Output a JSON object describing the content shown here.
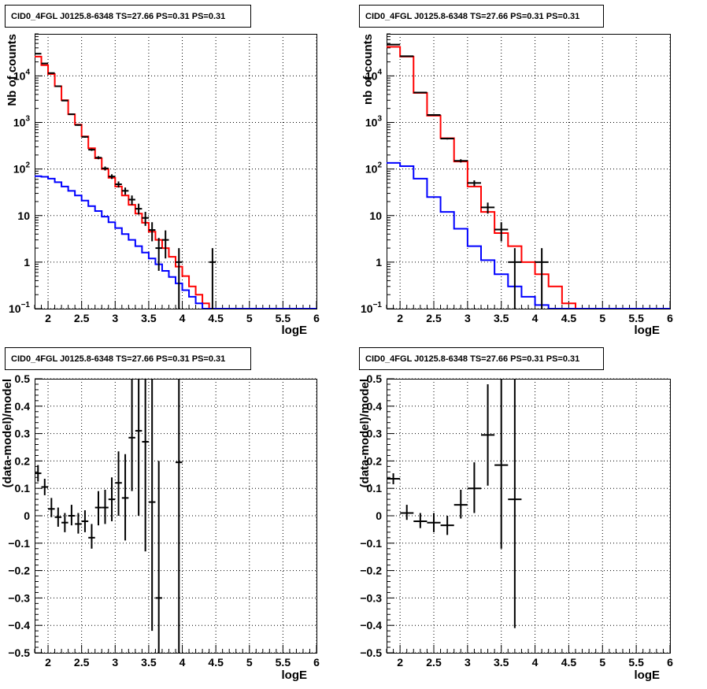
{
  "chart_data": [
    {
      "id": "tl",
      "type": "histogram-log",
      "title": "CID0_4FGL J0125.8-6348 TS=27.66 PS=0.31 PS=0.31",
      "xlabel": "logE",
      "ylabel": "Nb of counts",
      "xlim": [
        1.8,
        6.0
      ],
      "ylim": [
        0.1,
        80000
      ],
      "log_y": true,
      "grid": true,
      "x_ticks": [
        "2",
        "2.5",
        "3",
        "3.5",
        "4",
        "4.5",
        "5",
        "5.5",
        "6"
      ],
      "y_ticks": [
        {
          "v": 0.1,
          "base": "10",
          "exp": "−1"
        },
        {
          "v": 1,
          "label": "1"
        },
        {
          "v": 10,
          "label": "10"
        },
        {
          "v": 100,
          "base": "10",
          "exp": "2"
        },
        {
          "v": 1000,
          "base": "10",
          "exp": "3"
        },
        {
          "v": 10000,
          "base": "10",
          "exp": "4"
        }
      ],
      "bin_edges": [
        1.8,
        1.9,
        2.0,
        2.1,
        2.2,
        2.3,
        2.4,
        2.5,
        2.6,
        2.7,
        2.8,
        2.9,
        3.0,
        3.1,
        3.2,
        3.3,
        3.4,
        3.5,
        3.6,
        3.7,
        3.8,
        3.9,
        4.0,
        4.1,
        4.2,
        4.3,
        4.4,
        4.5,
        4.6,
        4.7,
        4.8,
        4.9,
        5.0,
        5.1,
        5.2,
        5.3,
        5.4,
        5.5,
        5.6,
        5.7,
        5.8,
        5.9,
        6.0
      ],
      "series": [
        {
          "color": "#ff0000",
          "style": "step",
          "values": [
            26000,
            17000,
            11000,
            6000,
            3000,
            1500,
            900,
            500,
            280,
            170,
            100,
            65,
            42,
            27,
            17,
            11,
            7,
            4.5,
            3.0,
            2.0,
            1.3,
            0.8,
            0.5,
            0.3,
            0.2,
            0.13,
            0.1,
            0.1,
            0.1,
            0.1,
            0.1,
            0.1,
            0.1,
            0.1,
            0.1,
            0.1,
            0.1,
            0.1,
            0.1,
            0.1,
            0.1,
            0.1
          ]
        },
        {
          "color": "#0000ff",
          "style": "step",
          "values": [
            70,
            68,
            62,
            52,
            42,
            34,
            27,
            21,
            16,
            12.5,
            9.5,
            7.2,
            5.4,
            4.0,
            3.0,
            2.2,
            1.6,
            1.2,
            0.9,
            0.65,
            0.48,
            0.35,
            0.25,
            0.18,
            0.13,
            0.1,
            0.1,
            0.1,
            0.1,
            0.1,
            0.1,
            0.1,
            0.1,
            0.1,
            0.1,
            0.1,
            0.1,
            0.1,
            0.1,
            0.1,
            0.1,
            0.1
          ]
        },
        {
          "color": "#000000",
          "style": "points",
          "points": [
            {
              "x": 1.85,
              "y": 30000,
              "ylo": 29700,
              "yhi": 30300,
              "xerr": 0.05
            },
            {
              "x": 1.95,
              "y": 18500,
              "ylo": 18300,
              "yhi": 18700,
              "xerr": 0.05
            },
            {
              "x": 2.05,
              "y": 11500,
              "ylo": 11400,
              "yhi": 11600,
              "xerr": 0.05
            },
            {
              "x": 2.15,
              "y": 6000,
              "ylo": 5920,
              "yhi": 6080,
              "xerr": 0.05
            },
            {
              "x": 2.25,
              "y": 2950,
              "ylo": 2900,
              "yhi": 3000,
              "xerr": 0.05
            },
            {
              "x": 2.35,
              "y": 1500,
              "ylo": 1460,
              "yhi": 1540,
              "xerr": 0.05
            },
            {
              "x": 2.45,
              "y": 880,
              "ylo": 850,
              "yhi": 910,
              "xerr": 0.05
            },
            {
              "x": 2.55,
              "y": 490,
              "ylo": 470,
              "yhi": 510,
              "xerr": 0.05
            },
            {
              "x": 2.65,
              "y": 260,
              "ylo": 245,
              "yhi": 275,
              "xerr": 0.05
            },
            {
              "x": 2.75,
              "y": 175,
              "ylo": 162,
              "yhi": 188,
              "xerr": 0.05
            },
            {
              "x": 2.85,
              "y": 103,
              "ylo": 93,
              "yhi": 113,
              "xerr": 0.05
            },
            {
              "x": 2.95,
              "y": 69,
              "ylo": 61,
              "yhi": 77,
              "xerr": 0.05
            },
            {
              "x": 3.05,
              "y": 47,
              "ylo": 40,
              "yhi": 54,
              "xerr": 0.05
            },
            {
              "x": 3.15,
              "y": 34,
              "ylo": 28,
              "yhi": 40,
              "xerr": 0.05
            },
            {
              "x": 3.25,
              "y": 22,
              "ylo": 17,
              "yhi": 27,
              "xerr": 0.05
            },
            {
              "x": 3.35,
              "y": 14,
              "ylo": 10.5,
              "yhi": 18,
              "xerr": 0.05
            },
            {
              "x": 3.45,
              "y": 8.9,
              "ylo": 6,
              "yhi": 12,
              "xerr": 0.05
            },
            {
              "x": 3.55,
              "y": 4.9,
              "ylo": 2.8,
              "yhi": 7.2,
              "xerr": 0.05
            },
            {
              "x": 3.65,
              "y": 2.0,
              "ylo": 0.65,
              "yhi": 3.3,
              "xerr": 0.05
            },
            {
              "x": 3.75,
              "y": 3.0,
              "ylo": 1.2,
              "yhi": 4.8,
              "xerr": 0.05
            },
            {
              "x": 3.95,
              "y": 1.0,
              "ylo": 0.1,
              "yhi": 2.0,
              "xerr": 0.05
            },
            {
              "x": 4.45,
              "y": 1.0,
              "ylo": 0.1,
              "yhi": 2.0,
              "xerr": 0.05
            }
          ]
        }
      ]
    },
    {
      "id": "tr",
      "type": "histogram-log",
      "title": "CID0_4FGL J0125.8-6348 TS=27.66 PS=0.31 PS=0.31",
      "xlabel": "logE",
      "ylabel": "nb of counts",
      "xlim": [
        1.8,
        6.0
      ],
      "ylim": [
        0.1,
        80000
      ],
      "log_y": true,
      "grid": true,
      "x_ticks": [
        "2",
        "2.5",
        "3",
        "3.5",
        "4",
        "4.5",
        "5",
        "5.5",
        "6"
      ],
      "y_ticks": [
        {
          "v": 0.1,
          "base": "10",
          "exp": "−1"
        },
        {
          "v": 1,
          "label": "1"
        },
        {
          "v": 10,
          "label": "10"
        },
        {
          "v": 100,
          "base": "10",
          "exp": "2"
        },
        {
          "v": 1000,
          "base": "10",
          "exp": "3"
        },
        {
          "v": 10000,
          "base": "10",
          "exp": "4"
        }
      ],
      "bin_edges": [
        1.8,
        2.0,
        2.2,
        2.4,
        2.6,
        2.8,
        3.0,
        3.2,
        3.4,
        3.6,
        3.8,
        4.0,
        4.2,
        4.4,
        4.6,
        4.8,
        5.0,
        5.2,
        5.4,
        5.6,
        5.8,
        6.0
      ],
      "series": [
        {
          "color": "#ff0000",
          "style": "step",
          "values": [
            42000,
            26000,
            4300,
            1400,
            460,
            145,
            42,
            12,
            4.2,
            2.2,
            1.0,
            0.55,
            0.3,
            0.13,
            0.1,
            0.1,
            0.1,
            0.1,
            0.1,
            0.1,
            0.1
          ]
        },
        {
          "color": "#0000ff",
          "style": "step",
          "values": [
            135,
            115,
            62,
            25,
            12,
            5.2,
            2.2,
            1.1,
            0.55,
            0.3,
            0.18,
            0.12,
            0.1,
            0.1,
            0.1,
            0.1,
            0.1,
            0.1,
            0.1,
            0.1,
            0.1
          ]
        },
        {
          "color": "#000000",
          "style": "points",
          "points": [
            {
              "x": 1.9,
              "y": 47000,
              "ylo": 46500,
              "yhi": 47500,
              "xerr": 0.1
            },
            {
              "x": 2.1,
              "y": 26500,
              "ylo": 26200,
              "yhi": 26800,
              "xerr": 0.1
            },
            {
              "x": 2.3,
              "y": 4400,
              "ylo": 4300,
              "yhi": 4500,
              "xerr": 0.1
            },
            {
              "x": 2.5,
              "y": 1450,
              "ylo": 1400,
              "yhi": 1500,
              "xerr": 0.1
            },
            {
              "x": 2.7,
              "y": 450,
              "ylo": 430,
              "yhi": 470,
              "xerr": 0.1
            },
            {
              "x": 2.9,
              "y": 150,
              "ylo": 138,
              "yhi": 162,
              "xerr": 0.1
            },
            {
              "x": 3.1,
              "y": 50,
              "ylo": 43,
              "yhi": 57,
              "xerr": 0.1
            },
            {
              "x": 3.3,
              "y": 15,
              "ylo": 11,
              "yhi": 19,
              "xerr": 0.1
            },
            {
              "x": 3.5,
              "y": 5.0,
              "ylo": 2.8,
              "yhi": 7.2,
              "xerr": 0.1
            },
            {
              "x": 3.7,
              "y": 1.0,
              "ylo": 0.1,
              "yhi": 2.0,
              "xerr": 0.1
            },
            {
              "x": 4.1,
              "y": 1.0,
              "ylo": 0.1,
              "yhi": 2.0,
              "xerr": 0.1
            }
          ]
        }
      ]
    },
    {
      "id": "bl",
      "type": "scatter-errorbars",
      "title": "CID0_4FGL J0125.8-6348 TS=27.66 PS=0.31 PS=0.31",
      "xlabel": "logE",
      "ylabel": "(data-model)/model",
      "xlim": [
        1.8,
        6.0
      ],
      "ylim": [
        -0.5,
        0.5
      ],
      "log_y": false,
      "grid": true,
      "x_ticks": [
        "2",
        "2.5",
        "3",
        "3.5",
        "4",
        "4.5",
        "5",
        "5.5",
        "6"
      ],
      "y_ticks": [
        {
          "v": -0.5,
          "label": "−0.5"
        },
        {
          "v": -0.4,
          "label": "−0.4"
        },
        {
          "v": -0.3,
          "label": "−0.3"
        },
        {
          "v": -0.2,
          "label": "−0.2"
        },
        {
          "v": -0.1,
          "label": "−0.1"
        },
        {
          "v": 0,
          "label": "0"
        },
        {
          "v": 0.1,
          "label": "0.1"
        },
        {
          "v": 0.2,
          "label": "0.2"
        },
        {
          "v": 0.3,
          "label": "0.3"
        },
        {
          "v": 0.4,
          "label": "0.4"
        },
        {
          "v": 0.5,
          "label": "0.5"
        }
      ],
      "series": [
        {
          "color": "#000000",
          "style": "points",
          "points": [
            {
              "x": 1.85,
              "y": 0.155,
              "ylo": 0.125,
              "yhi": 0.185,
              "xerr": 0.05
            },
            {
              "x": 1.95,
              "y": 0.105,
              "ylo": 0.075,
              "yhi": 0.135,
              "xerr": 0.05
            },
            {
              "x": 2.05,
              "y": 0.025,
              "ylo": -0.005,
              "yhi": 0.065,
              "xerr": 0.05
            },
            {
              "x": 2.15,
              "y": -0.005,
              "ylo": -0.04,
              "yhi": 0.03,
              "xerr": 0.05
            },
            {
              "x": 2.25,
              "y": -0.025,
              "ylo": -0.06,
              "yhi": 0.01,
              "xerr": 0.05
            },
            {
              "x": 2.35,
              "y": 0.0,
              "ylo": -0.035,
              "yhi": 0.04,
              "xerr": 0.05
            },
            {
              "x": 2.45,
              "y": -0.03,
              "ylo": -0.065,
              "yhi": 0.01,
              "xerr": 0.05
            },
            {
              "x": 2.55,
              "y": -0.02,
              "ylo": -0.06,
              "yhi": 0.02,
              "xerr": 0.05
            },
            {
              "x": 2.65,
              "y": -0.08,
              "ylo": -0.12,
              "yhi": -0.03,
              "xerr": 0.05
            },
            {
              "x": 2.75,
              "y": 0.03,
              "ylo": -0.035,
              "yhi": 0.09,
              "xerr": 0.05
            },
            {
              "x": 2.85,
              "y": 0.03,
              "ylo": -0.03,
              "yhi": 0.095,
              "xerr": 0.05
            },
            {
              "x": 2.95,
              "y": 0.06,
              "ylo": -0.02,
              "yhi": 0.14,
              "xerr": 0.05
            },
            {
              "x": 3.05,
              "y": 0.12,
              "ylo": 0.0,
              "yhi": 0.235,
              "xerr": 0.05
            },
            {
              "x": 3.15,
              "y": 0.065,
              "ylo": -0.09,
              "yhi": 0.225,
              "xerr": 0.05
            },
            {
              "x": 3.25,
              "y": 0.285,
              "ylo": 0.09,
              "yhi": 0.5,
              "xerr": 0.05
            },
            {
              "x": 3.35,
              "y": 0.31,
              "ylo": 0.0,
              "yhi": 0.5,
              "xerr": 0.05
            },
            {
              "x": 3.45,
              "y": 0.27,
              "ylo": -0.13,
              "yhi": 0.5,
              "xerr": 0.05
            },
            {
              "x": 3.55,
              "y": 0.05,
              "ylo": -0.42,
              "yhi": 0.5,
              "xerr": 0.05
            },
            {
              "x": 3.65,
              "y": -0.3,
              "ylo": -0.5,
              "yhi": 0.2,
              "xerr": 0.05
            },
            {
              "x": 3.95,
              "y": 0.195,
              "ylo": -0.5,
              "yhi": 0.5,
              "xerr": 0.05
            }
          ]
        }
      ]
    },
    {
      "id": "br",
      "type": "scatter-errorbars",
      "title": "CID0_4FGL J0125.8-6348 TS=27.66 PS=0.31 PS=0.31",
      "xlabel": "logE",
      "ylabel": "(data-model)/model",
      "xlim": [
        1.8,
        6.0
      ],
      "ylim": [
        -0.5,
        0.5
      ],
      "log_y": false,
      "grid": true,
      "x_ticks": [
        "2",
        "2.5",
        "3",
        "3.5",
        "4",
        "4.5",
        "5",
        "5.5",
        "6"
      ],
      "y_ticks": [
        {
          "v": -0.5,
          "label": "−0.5"
        },
        {
          "v": -0.4,
          "label": "−0.4"
        },
        {
          "v": -0.3,
          "label": "−0.3"
        },
        {
          "v": -0.2,
          "label": "−0.2"
        },
        {
          "v": -0.1,
          "label": "−0.1"
        },
        {
          "v": 0,
          "label": "0"
        },
        {
          "v": 0.1,
          "label": "0.1"
        },
        {
          "v": 0.2,
          "label": "0.2"
        },
        {
          "v": 0.3,
          "label": "0.3"
        },
        {
          "v": 0.4,
          "label": "0.4"
        },
        {
          "v": 0.5,
          "label": "0.5"
        }
      ],
      "series": [
        {
          "color": "#000000",
          "style": "points",
          "points": [
            {
              "x": 1.9,
              "y": 0.135,
              "ylo": 0.115,
              "yhi": 0.155,
              "xerr": 0.1
            },
            {
              "x": 2.1,
              "y": 0.01,
              "ylo": -0.015,
              "yhi": 0.04,
              "xerr": 0.1
            },
            {
              "x": 2.3,
              "y": -0.02,
              "ylo": -0.045,
              "yhi": 0.01,
              "xerr": 0.1
            },
            {
              "x": 2.5,
              "y": -0.025,
              "ylo": -0.06,
              "yhi": 0.01,
              "xerr": 0.1
            },
            {
              "x": 2.7,
              "y": -0.035,
              "ylo": -0.07,
              "yhi": 0.0,
              "xerr": 0.1
            },
            {
              "x": 2.9,
              "y": 0.04,
              "ylo": -0.01,
              "yhi": 0.095,
              "xerr": 0.1
            },
            {
              "x": 3.1,
              "y": 0.1,
              "ylo": 0.01,
              "yhi": 0.195,
              "xerr": 0.1
            },
            {
              "x": 3.3,
              "y": 0.295,
              "ylo": 0.11,
              "yhi": 0.48,
              "xerr": 0.1
            },
            {
              "x": 3.5,
              "y": 0.185,
              "ylo": -0.12,
              "yhi": 0.5,
              "xerr": 0.1
            },
            {
              "x": 3.7,
              "y": 0.06,
              "ylo": -0.41,
              "yhi": 0.5,
              "xerr": 0.1
            }
          ]
        }
      ]
    }
  ]
}
